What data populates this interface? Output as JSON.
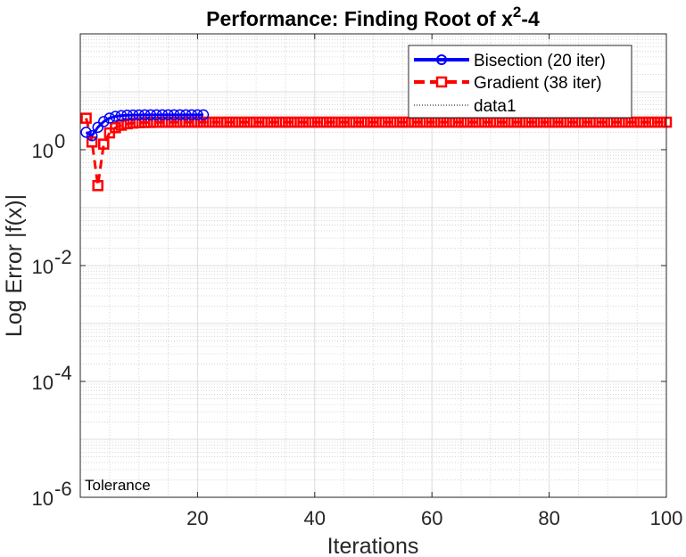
{
  "chart_data": {
    "type": "line",
    "title_main": "Performance: Finding Root of x",
    "title_sup": "2",
    "title_tail": "-4",
    "xlabel": "Iterations",
    "ylabel": "Log Error |f(x)|",
    "xlim": [
      0,
      100
    ],
    "ylim": [
      1e-06,
      100
    ],
    "yscale": "log",
    "grid": true,
    "minor_grid": true,
    "legend_position": "top-right",
    "x_ticks": [
      20,
      40,
      60,
      80,
      100
    ],
    "y_ticks": [
      {
        "base": "10",
        "exp": "0",
        "value": 1
      },
      {
        "base": "10",
        "exp": "-2",
        "value": 0.01
      },
      {
        "base": "10",
        "exp": "-4",
        "value": 0.0001
      },
      {
        "base": "10",
        "exp": "-6",
        "value": 1e-06
      }
    ],
    "annotation": "Tolerance",
    "series": [
      {
        "name": "Bisection (20 iter)",
        "color": "#0000ff",
        "style": "solid",
        "marker": "circle",
        "x": [
          1,
          2,
          3,
          4,
          5,
          6,
          7,
          8,
          9,
          10,
          11,
          12,
          13,
          14,
          15,
          16,
          17,
          18,
          19,
          20,
          21
        ],
        "y": [
          2.0,
          1.75,
          2.44,
          3.06,
          3.52,
          3.76,
          3.88,
          3.94,
          3.97,
          3.985,
          3.99,
          3.995,
          3.997,
          3.998,
          3.999,
          3.999,
          4.0,
          4.0,
          4.0,
          4.0,
          4.0
        ]
      },
      {
        "name": "Gradient (38 iter)",
        "color": "#ff0000",
        "style": "dashed",
        "marker": "square",
        "x": [
          1,
          2,
          3,
          4,
          5,
          6,
          7,
          8,
          9,
          10,
          11,
          12,
          13,
          14,
          15,
          16,
          17,
          18,
          19,
          20,
          21,
          22,
          23,
          24,
          25,
          26,
          27,
          28,
          29,
          30,
          31,
          32,
          33,
          34,
          35,
          36,
          37,
          38,
          39,
          40,
          41,
          42,
          43,
          44,
          45,
          46,
          47,
          48,
          49,
          50,
          51,
          52,
          53,
          54,
          55,
          56,
          57,
          58,
          59,
          60,
          61,
          62,
          63,
          64,
          65,
          66,
          67,
          68,
          69,
          70,
          71,
          72,
          73,
          74,
          75,
          76,
          77,
          78,
          79,
          80,
          81,
          82,
          83,
          84,
          85,
          86,
          87,
          88,
          89,
          90,
          91,
          92,
          93,
          94,
          95,
          96,
          97,
          98,
          99,
          100
        ],
        "y": [
          3.5,
          1.36,
          0.24,
          1.25,
          1.95,
          2.4,
          2.65,
          2.8,
          2.88,
          2.92,
          2.95,
          2.96,
          2.97,
          2.975,
          2.98,
          2.98,
          2.985,
          2.985,
          2.99,
          2.99,
          2.99,
          2.99,
          2.99,
          2.99,
          2.99,
          2.99,
          2.99,
          2.99,
          2.99,
          2.99,
          2.99,
          2.99,
          2.99,
          2.99,
          2.99,
          2.99,
          2.99,
          2.99,
          2.99,
          2.99,
          2.99,
          2.99,
          2.99,
          2.99,
          2.99,
          2.99,
          2.99,
          2.99,
          2.99,
          2.99,
          2.99,
          2.99,
          2.99,
          2.99,
          2.99,
          2.99,
          2.99,
          2.99,
          2.99,
          2.99,
          2.99,
          2.99,
          2.99,
          2.99,
          2.99,
          2.99,
          2.99,
          2.99,
          2.99,
          2.99,
          2.99,
          2.99,
          2.99,
          2.99,
          2.99,
          2.99,
          2.99,
          2.99,
          2.99,
          2.99,
          2.99,
          2.99,
          2.99,
          2.99,
          2.99,
          2.99,
          2.99,
          2.99,
          2.99,
          2.99,
          2.99,
          2.99,
          2.99,
          2.99,
          2.99,
          2.99,
          2.99,
          2.99,
          2.99,
          2.99
        ]
      },
      {
        "name": "data1",
        "color": "#000000",
        "style": "dotted",
        "marker": "none",
        "x": [
          0,
          100
        ],
        "y": [
          1e-06,
          1e-06
        ]
      }
    ]
  }
}
